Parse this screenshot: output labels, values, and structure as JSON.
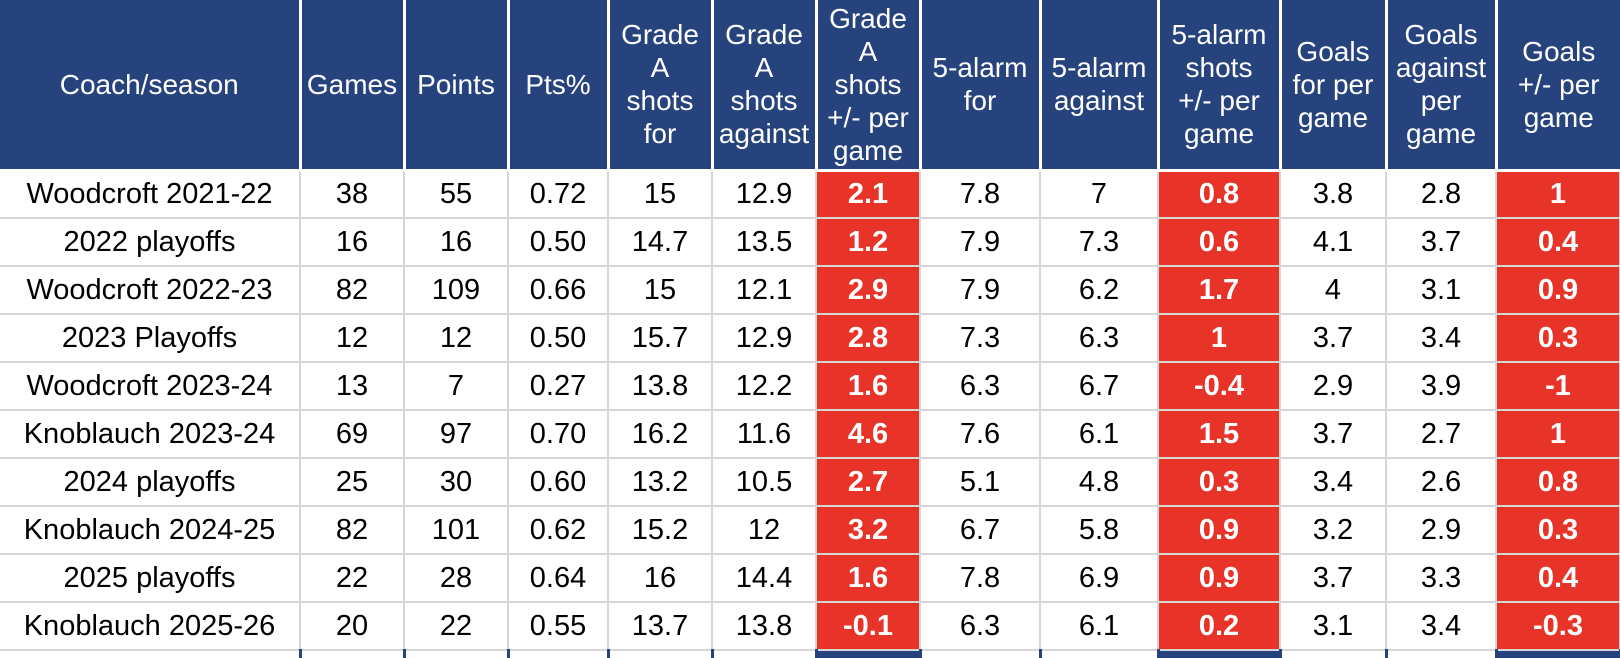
{
  "colors": {
    "header_bg": "#27437e",
    "highlight_bg": "#e73328",
    "grid": "#d6d6d6",
    "header_text": "#ffffff",
    "cell_text": "#000000"
  },
  "chart_data": {
    "type": "table",
    "title": "",
    "columns": [
      "Coach/season",
      "Games",
      "Points",
      "Pts%",
      "Grade A shots for",
      "Grade A shots against",
      "Grade A shots +/- per game",
      "5-alarm for",
      "5-alarm against",
      "5-alarm shots +/- per game",
      "Goals for per game",
      "Goals against per game",
      "Goals +/- per game"
    ],
    "header_display": [
      "Coach/season",
      "Games",
      "Points",
      "Pts%",
      "Grade\nA\nshots\nfor",
      "Grade\nA\nshots\nagainst",
      "Grade\nA\nshots\n+/- per\ngame",
      "5-alarm\nfor",
      "5-alarm\nagainst",
      "5-alarm\nshots\n+/- per\ngame",
      "Goals\nfor per\ngame",
      "Goals\nagainst\nper\ngame",
      "Goals\n+/- per\ngame"
    ],
    "highlight_columns": [
      6,
      9,
      12
    ],
    "rows": [
      [
        "Woodcroft 2021-22",
        "38",
        "55",
        "0.72",
        "15",
        "12.9",
        "2.1",
        "7.8",
        "7",
        "0.8",
        "3.8",
        "2.8",
        "1"
      ],
      [
        "2022 playoffs",
        "16",
        "16",
        "0.50",
        "14.7",
        "13.5",
        "1.2",
        "7.9",
        "7.3",
        "0.6",
        "4.1",
        "3.7",
        "0.4"
      ],
      [
        "Woodcroft 2022-23",
        "82",
        "109",
        "0.66",
        "15",
        "12.1",
        "2.9",
        "7.9",
        "6.2",
        "1.7",
        "4",
        "3.1",
        "0.9"
      ],
      [
        "2023 Playoffs",
        "12",
        "12",
        "0.50",
        "15.7",
        "12.9",
        "2.8",
        "7.3",
        "6.3",
        "1",
        "3.7",
        "3.4",
        "0.3"
      ],
      [
        "Woodcroft 2023-24",
        "13",
        "7",
        "0.27",
        "13.8",
        "12.2",
        "1.6",
        "6.3",
        "6.7",
        "-0.4",
        "2.9",
        "3.9",
        "-1"
      ],
      [
        "Knoblauch 2023-24",
        "69",
        "97",
        "0.70",
        "16.2",
        "11.6",
        "4.6",
        "7.6",
        "6.1",
        "1.5",
        "3.7",
        "2.7",
        "1"
      ],
      [
        "2024 playoffs",
        "25",
        "30",
        "0.60",
        "13.2",
        "10.5",
        "2.7",
        "5.1",
        "4.8",
        "0.3",
        "3.4",
        "2.6",
        "0.8"
      ],
      [
        "Knoblauch 2024-25",
        "82",
        "101",
        "0.62",
        "15.2",
        "12",
        "3.2",
        "6.7",
        "5.8",
        "0.9",
        "3.2",
        "2.9",
        "0.3"
      ],
      [
        "2025 playoffs",
        "22",
        "28",
        "0.64",
        "16",
        "14.4",
        "1.6",
        "7.8",
        "6.9",
        "0.9",
        "3.7",
        "3.3",
        "0.4"
      ],
      [
        "Knoblauch 2025-26",
        "20",
        "22",
        "0.55",
        "13.7",
        "13.8",
        "-0.1",
        "6.3",
        "6.1",
        "0.2",
        "3.1",
        "3.4",
        "-0.3"
      ]
    ]
  }
}
